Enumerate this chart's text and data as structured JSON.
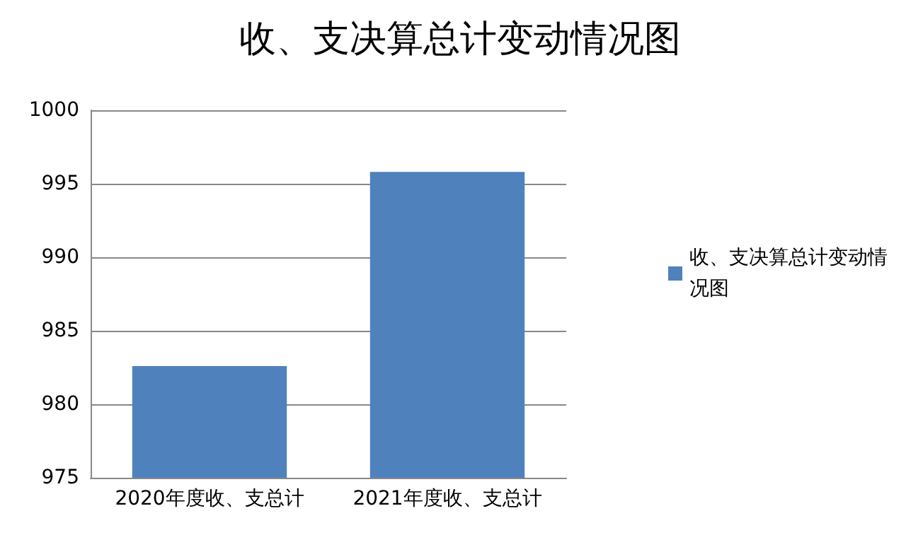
{
  "chart_data": {
    "type": "bar",
    "title": "收、支决算总计变动情况图",
    "categories": [
      "2020年度收、支总计",
      "2021年度收、支总计"
    ],
    "series": [
      {
        "name": "收、支决算总计变动情况图",
        "color": "#4f81bd",
        "values": [
          982.6,
          995.8
        ]
      }
    ],
    "ylim": [
      975,
      1000
    ],
    "yticks": [
      975,
      980,
      985,
      990,
      995,
      1000
    ],
    "grid": "y",
    "legend": "right"
  }
}
